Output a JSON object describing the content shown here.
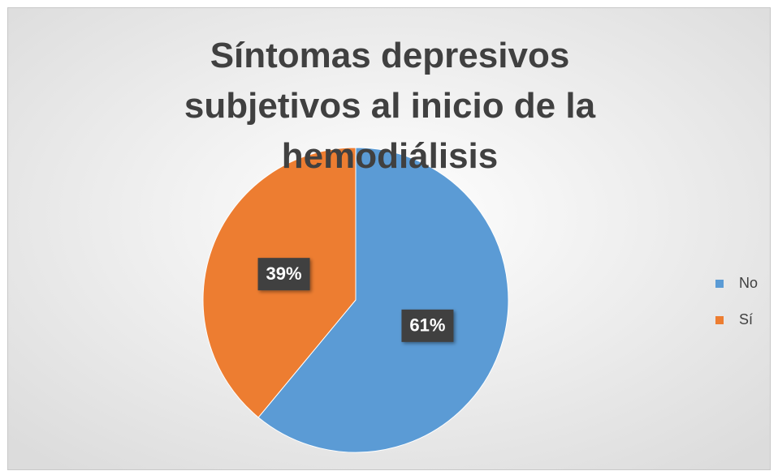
{
  "chart_data": {
    "type": "pie",
    "title": "Síntomas depresivos subjetivos al inicio de la hemodiálisis",
    "categories": [
      "No",
      "Sí"
    ],
    "values": [
      61,
      39
    ],
    "value_labels": [
      "61%",
      "39%"
    ],
    "colors": [
      "#5b9bd5",
      "#ed7d31"
    ],
    "legend": "right"
  }
}
